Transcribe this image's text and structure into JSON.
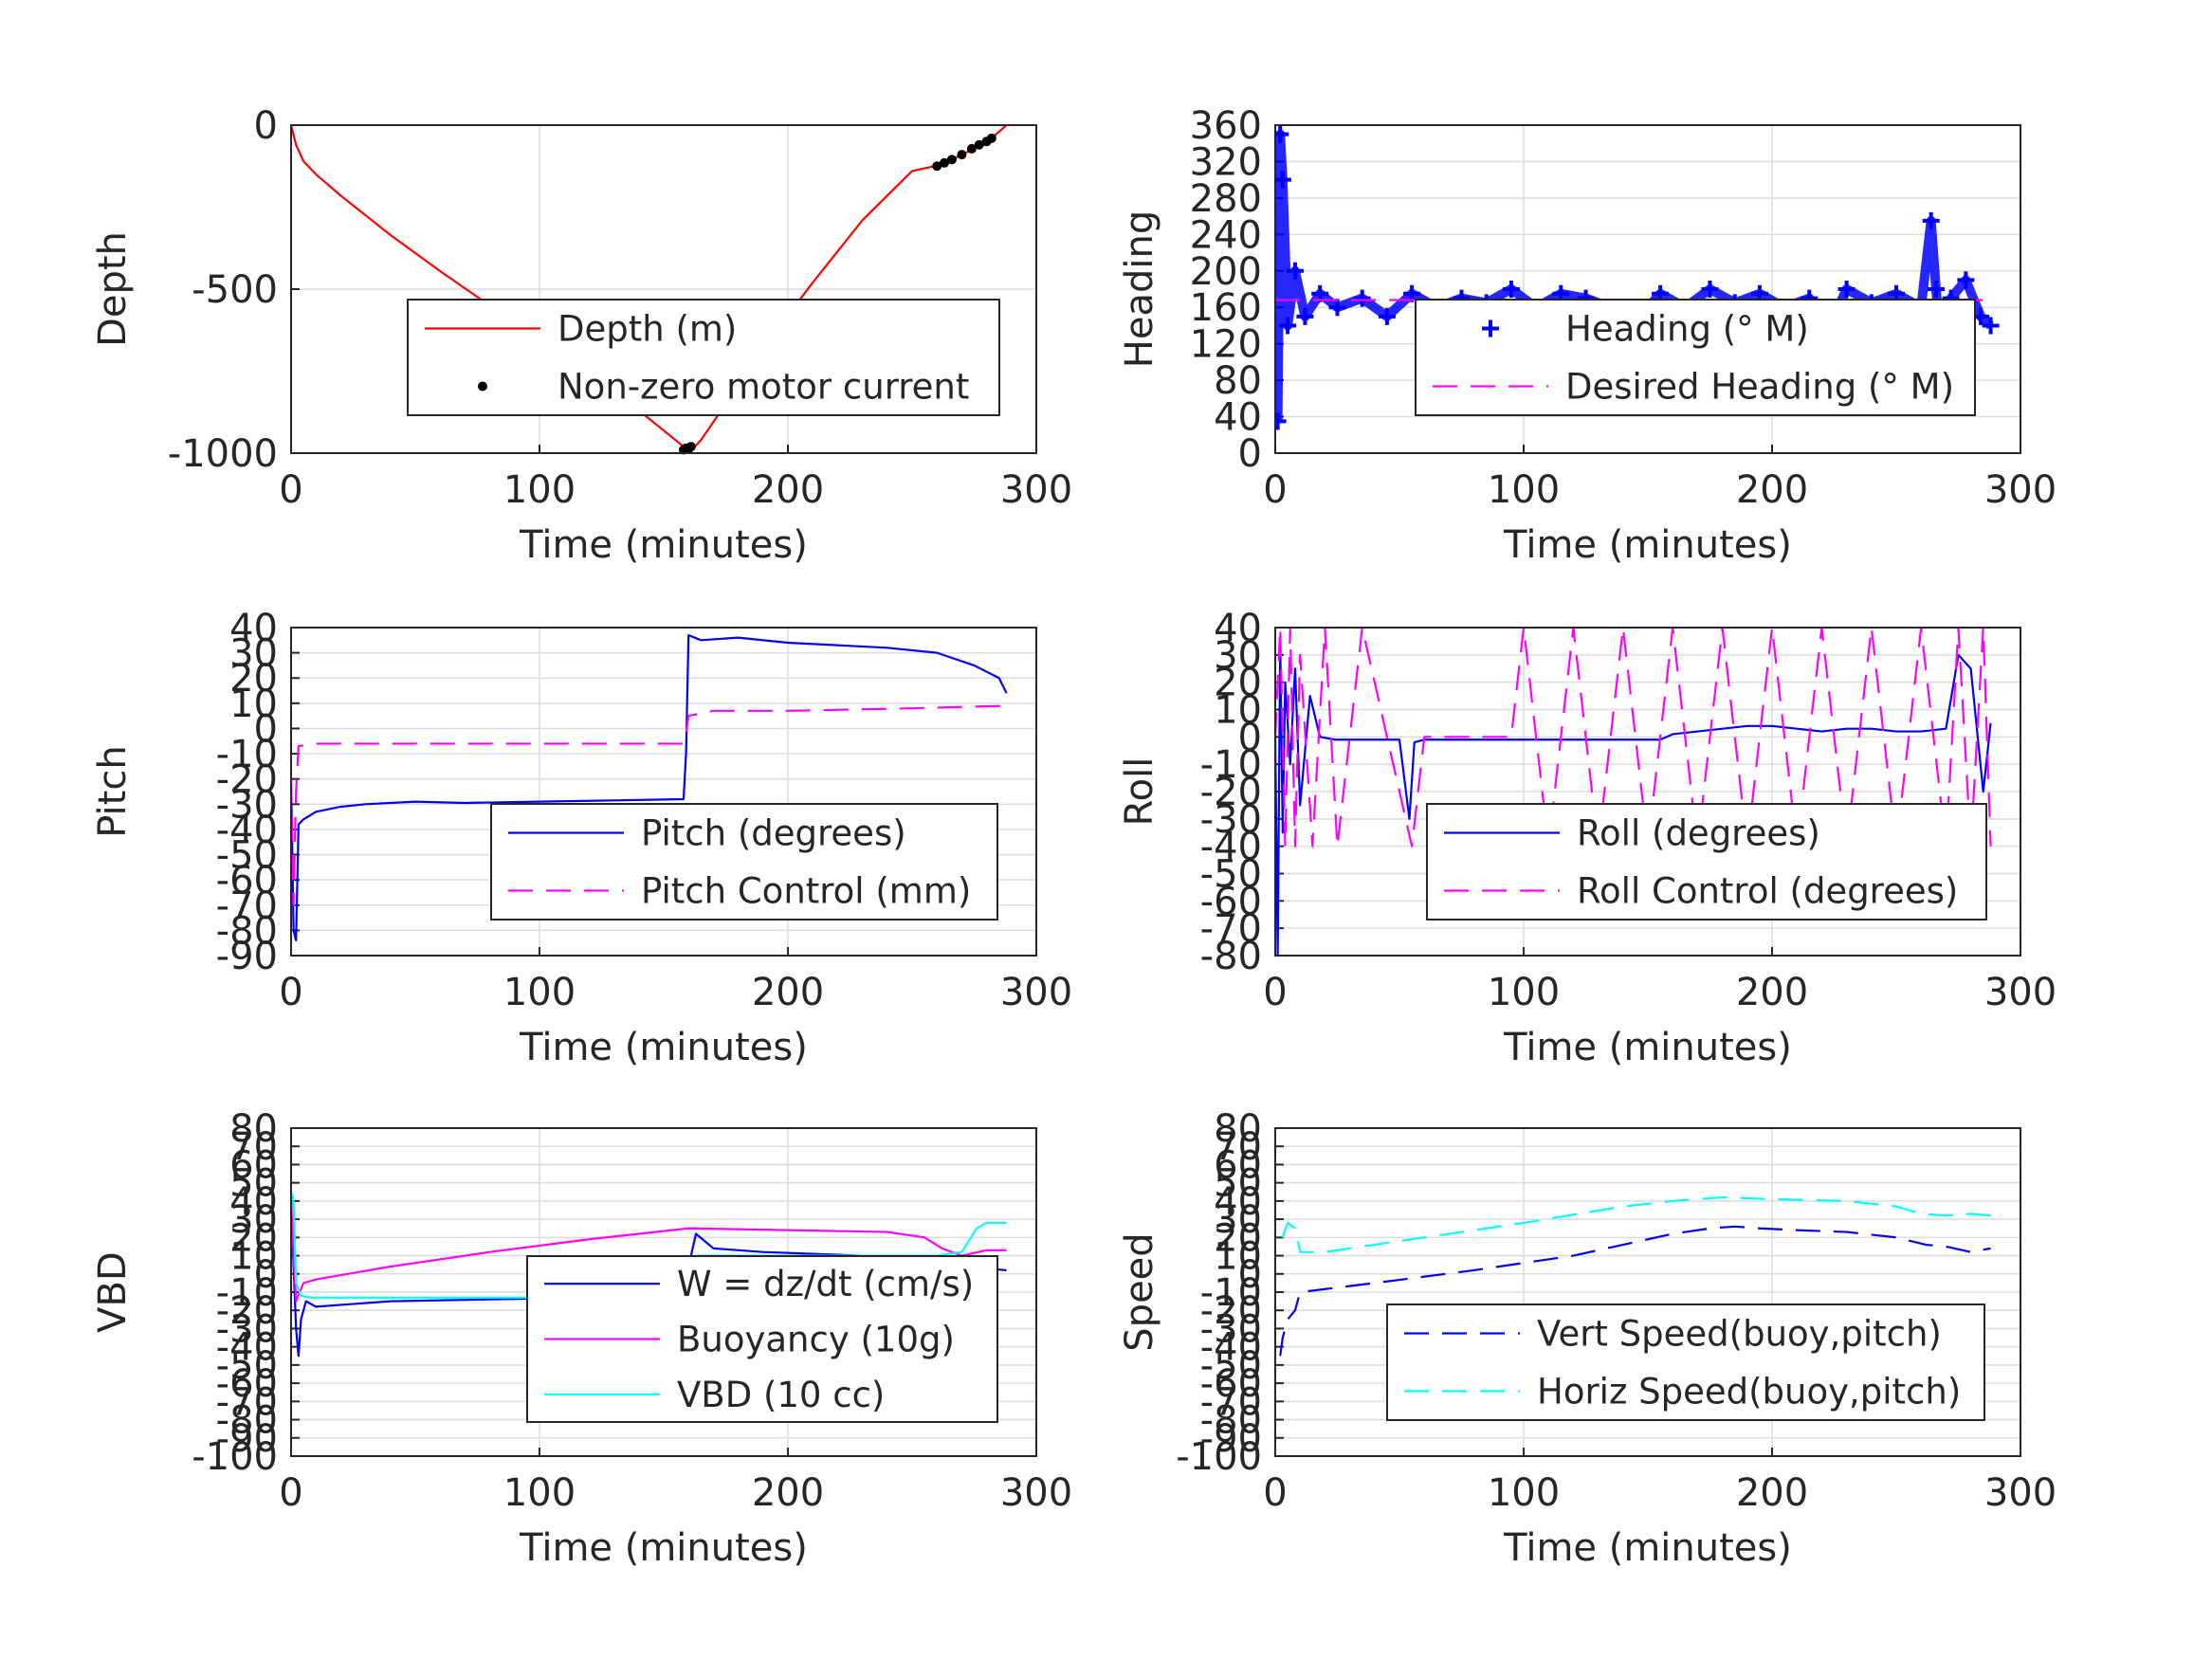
{
  "chart_data": [
    {
      "id": "depth",
      "type": "line",
      "xlabel": "Time (minutes)",
      "ylabel": "Depth",
      "xlim": [
        0,
        300
      ],
      "ylim": [
        -1000,
        0
      ],
      "xticks": [
        "0",
        "100",
        "200",
        "300"
      ],
      "yticks": [
        "-1000",
        "-500",
        "0"
      ],
      "legend_position": "lower-right",
      "grid": true,
      "series": [
        {
          "name": "Depth (m)",
          "style": "solid",
          "color": "#ff0000",
          "x": [
            0,
            2,
            5,
            10,
            20,
            40,
            60,
            80,
            100,
            120,
            140,
            158,
            160,
            162,
            165,
            175,
            190,
            210,
            230,
            250,
            262,
            270,
            278,
            282,
            288
          ],
          "y": [
            0,
            -60,
            -110,
            -150,
            -215,
            -335,
            -445,
            -550,
            -650,
            -760,
            -870,
            -980,
            -990,
            -985,
            -960,
            -850,
            -680,
            -480,
            -290,
            -140,
            -120,
            -90,
            -60,
            -40,
            0
          ]
        },
        {
          "name": "Non-zero motor current",
          "style": "dots",
          "color": "#000000",
          "x": [
            158,
            159,
            160,
            161,
            260,
            263,
            266,
            270,
            274,
            277,
            280,
            282
          ],
          "y": [
            -990,
            -985,
            -988,
            -980,
            -125,
            -115,
            -105,
            -90,
            -72,
            -60,
            -50,
            -40
          ]
        }
      ]
    },
    {
      "id": "heading",
      "type": "line",
      "xlabel": "Time (minutes)",
      "ylabel": "Heading",
      "xlim": [
        0,
        300
      ],
      "ylim": [
        0,
        360
      ],
      "xticks": [
        "0",
        "100",
        "200",
        "300"
      ],
      "yticks": [
        "0",
        "40",
        "80",
        "120",
        "160",
        "200",
        "240",
        "280",
        "320",
        "360"
      ],
      "legend_position": "lower-right",
      "grid": true,
      "series": [
        {
          "name": "Heading (° M)",
          "style": "plus",
          "color": "#0000ff",
          "x": [
            1,
            2,
            3,
            5,
            8,
            12,
            18,
            25,
            35,
            45,
            55,
            65,
            75,
            85,
            95,
            105,
            115,
            125,
            135,
            145,
            155,
            165,
            175,
            185,
            195,
            205,
            215,
            222,
            225,
            230,
            240,
            250,
            260,
            264,
            266,
            268,
            272,
            278,
            284,
            288
          ],
          "y": [
            35,
            350,
            300,
            140,
            200,
            150,
            175,
            160,
            170,
            150,
            175,
            160,
            170,
            165,
            180,
            160,
            175,
            170,
            160,
            145,
            175,
            160,
            180,
            165,
            175,
            160,
            170,
            110,
            150,
            180,
            165,
            175,
            160,
            255,
            180,
            110,
            170,
            190,
            150,
            140
          ]
        },
        {
          "name": "Desired Heading (° M)",
          "style": "dash",
          "color": "#ff00ff",
          "x": [
            0,
            288
          ],
          "y": [
            168,
            168
          ]
        }
      ]
    },
    {
      "id": "pitch",
      "type": "line",
      "xlabel": "Time (minutes)",
      "ylabel": "Pitch",
      "xlim": [
        0,
        300
      ],
      "ylim": [
        -90,
        40
      ],
      "xticks": [
        "0",
        "100",
        "200",
        "300"
      ],
      "yticks": [
        "-90",
        "-80",
        "-70",
        "-60",
        "-50",
        "-40",
        "-30",
        "-20",
        "-10",
        "0",
        "10",
        "20",
        "30",
        "40"
      ],
      "legend_position": "lower-right",
      "grid": true,
      "series": [
        {
          "name": "Pitch (degrees)",
          "style": "solid",
          "color": "#0000ff",
          "x": [
            0,
            1,
            2,
            3,
            5,
            10,
            20,
            30,
            50,
            70,
            100,
            130,
            158,
            159,
            160,
            165,
            180,
            200,
            220,
            240,
            260,
            275,
            285,
            288
          ],
          "y": [
            -20,
            -80,
            -84,
            -38,
            -36,
            -33,
            -31,
            -30,
            -29,
            -29.5,
            -29,
            -28.5,
            -28,
            -10,
            37,
            35,
            36,
            34,
            33,
            32,
            30,
            25,
            20,
            14
          ]
        },
        {
          "name": "Pitch Control (mm)",
          "style": "dash",
          "color": "#ff00ff",
          "x": [
            0,
            1,
            2,
            3,
            10,
            50,
            100,
            158,
            159,
            160,
            170,
            200,
            250,
            288
          ],
          "y": [
            -20,
            -70,
            -25,
            -7,
            -6,
            -6,
            -6,
            -6,
            -2,
            5,
            7,
            7,
            8,
            9
          ]
        }
      ]
    },
    {
      "id": "roll",
      "type": "line",
      "xlabel": "Time (minutes)",
      "ylabel": "Roll",
      "xlim": [
        0,
        300
      ],
      "ylim": [
        -80,
        40
      ],
      "xticks": [
        "0",
        "100",
        "200",
        "300"
      ],
      "yticks": [
        "-80",
        "-70",
        "-60",
        "-50",
        "-40",
        "-30",
        "-20",
        "-10",
        "0",
        "10",
        "20",
        "30",
        "40"
      ],
      "legend_position": "lower-right",
      "grid": true,
      "series": [
        {
          "name": "Roll (degrees)",
          "style": "solid",
          "color": "#0000ff",
          "x": [
            0,
            1,
            2,
            3,
            4,
            6,
            8,
            10,
            14,
            18,
            24,
            30,
            40,
            50,
            54,
            56,
            60,
            80,
            100,
            120,
            140,
            155,
            160,
            170,
            180,
            190,
            200,
            210,
            220,
            230,
            240,
            250,
            260,
            270,
            275,
            280,
            285,
            288
          ],
          "y": [
            0,
            -80,
            35,
            -35,
            20,
            -10,
            25,
            -25,
            15,
            0,
            -1,
            -1,
            -1,
            -1,
            -30,
            -2,
            -1,
            -1,
            -1,
            -1,
            -1,
            -1,
            1,
            2,
            3,
            4,
            4,
            3,
            2,
            3,
            3,
            2,
            2,
            3,
            30,
            25,
            -20,
            5
          ]
        },
        {
          "name": "Roll Control (degrees)",
          "style": "dash",
          "color": "#ff00ff",
          "x": [
            0,
            2,
            4,
            6,
            8,
            10,
            15,
            20,
            25,
            30,
            35,
            45,
            55,
            60,
            80,
            95,
            100,
            110,
            120,
            130,
            140,
            150,
            155,
            160,
            170,
            180,
            190,
            200,
            210,
            220,
            230,
            240,
            250,
            260,
            270,
            275,
            280,
            285,
            288
          ],
          "y": [
            0,
            40,
            -40,
            40,
            -40,
            30,
            -40,
            40,
            -40,
            0,
            40,
            0,
            -40,
            0,
            0,
            0,
            40,
            -40,
            40,
            -40,
            40,
            -40,
            0,
            40,
            -40,
            40,
            -40,
            40,
            -40,
            40,
            -40,
            40,
            -40,
            40,
            -40,
            40,
            -40,
            40,
            -40
          ]
        }
      ]
    },
    {
      "id": "vbd",
      "type": "line",
      "xlabel": "Time (minutes)",
      "ylabel": "VBD",
      "xlim": [
        0,
        300
      ],
      "ylim": [
        -100,
        80
      ],
      "xticks": [
        "0",
        "100",
        "200",
        "300"
      ],
      "yticks": [
        "-100",
        "-90",
        "-80",
        "-70",
        "-60",
        "-50",
        "-40",
        "-30",
        "-20",
        "-10",
        "0",
        "10",
        "20",
        "30",
        "40",
        "50",
        "60",
        "70",
        "80"
      ],
      "legend_position": "lower-right",
      "grid": true,
      "series": [
        {
          "name": "W = dz/dt (cm/s)",
          "style": "solid",
          "color": "#0000ff",
          "x": [
            0,
            1,
            2,
            3,
            4,
            6,
            10,
            20,
            40,
            80,
            120,
            140,
            155,
            159,
            161,
            163,
            170,
            190,
            210,
            230,
            250,
            262,
            270,
            280,
            288
          ],
          "y": [
            40,
            5,
            -30,
            -45,
            -25,
            -15,
            -18,
            -17,
            -15,
            -14,
            -13,
            -16,
            -12,
            0,
            10,
            22,
            14,
            12,
            11,
            10,
            9,
            7,
            5,
            3,
            2
          ]
        },
        {
          "name": "Buoyancy (10g)",
          "style": "solid",
          "color": "#ff00ff",
          "x": [
            0,
            2,
            5,
            10,
            40,
            80,
            120,
            160,
            200,
            240,
            255,
            262,
            270,
            280,
            288
          ],
          "y": [
            40,
            -15,
            -5,
            -3,
            4,
            12,
            19,
            25,
            24,
            23,
            20,
            14,
            10,
            13,
            13
          ]
        },
        {
          "name": "VBD (10 cc)",
          "style": "solid",
          "color": "#00ffff",
          "x": [
            0,
            1,
            2,
            4,
            8,
            20,
            60,
            100,
            158,
            160,
            162,
            200,
            250,
            260,
            270,
            276,
            280,
            288
          ],
          "y": [
            45,
            40,
            -5,
            -12,
            -13,
            -13,
            -13,
            -13,
            -13,
            0,
            10,
            10,
            10,
            10,
            12,
            25,
            28,
            28
          ]
        }
      ]
    },
    {
      "id": "speed",
      "type": "line",
      "xlabel": "Time (minutes)",
      "ylabel": "Speed",
      "xlim": [
        0,
        300
      ],
      "ylim": [
        -100,
        80
      ],
      "xticks": [
        "0",
        "100",
        "200",
        "300"
      ],
      "yticks": [
        "-100",
        "-90",
        "-80",
        "-70",
        "-60",
        "-50",
        "-40",
        "-30",
        "-20",
        "-10",
        "0",
        "10",
        "20",
        "30",
        "40",
        "50",
        "60",
        "70",
        "80"
      ],
      "legend_position": "lower-right",
      "grid": true,
      "series": [
        {
          "name": "Vert Speed(buoy,pitch)",
          "style": "dash",
          "color": "#0000ff",
          "x": [
            2,
            3,
            5,
            8,
            10,
            40,
            80,
            120,
            160,
            175,
            185,
            195,
            210,
            230,
            250,
            262,
            270,
            280,
            288
          ],
          "y": [
            -45,
            -35,
            -25,
            -20,
            -10,
            -5,
            2,
            10,
            22,
            25,
            26,
            25,
            24,
            23,
            20,
            16,
            15,
            12,
            14
          ]
        },
        {
          "name": "Horiz Speed(buoy,pitch)",
          "style": "dash",
          "color": "#00ffff",
          "x": [
            3,
            5,
            8,
            10,
            20,
            60,
            100,
            140,
            160,
            180,
            200,
            230,
            250,
            260,
            270,
            280,
            288
          ],
          "y": [
            20,
            28,
            25,
            12,
            12,
            20,
            28,
            37,
            40,
            42,
            41,
            40,
            37,
            33,
            32,
            33,
            32
          ]
        }
      ]
    }
  ]
}
